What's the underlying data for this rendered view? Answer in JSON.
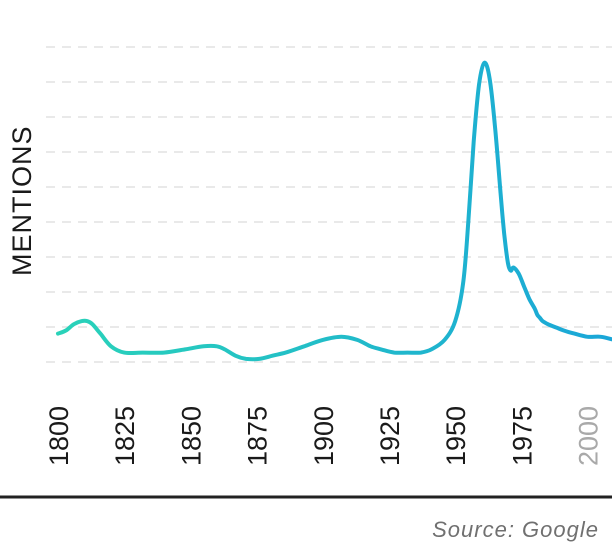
{
  "chart_data": {
    "type": "line",
    "title": "",
    "xlabel": "",
    "ylabel": "MENTIONS",
    "xlim": [
      1800,
      2010
    ],
    "ylim": [
      0,
      1.0
    ],
    "x_ticks": [
      "1800",
      "1825",
      "1850",
      "1875",
      "1900",
      "1925",
      "1950",
      "1975",
      "2000"
    ],
    "muted_ticks": [
      "2000"
    ],
    "grid": true,
    "gradient_colors": [
      "#2ad4b8",
      "#1aa6d8"
    ],
    "series": [
      {
        "name": "",
        "x": [
          1800,
          1803,
          1806,
          1809,
          1811,
          1813,
          1816,
          1820,
          1825,
          1832,
          1840,
          1848,
          1855,
          1860,
          1863,
          1867,
          1871,
          1876,
          1881,
          1886,
          1893,
          1900,
          1907,
          1913,
          1918,
          1922,
          1927,
          1932,
          1937,
          1941,
          1946,
          1950,
          1953,
          1955,
          1957,
          1959,
          1961,
          1963,
          1965,
          1967,
          1968,
          1969,
          1970,
          1971,
          1972,
          1974,
          1976,
          1978,
          1980,
          1981,
          1982,
          1983,
          1985,
          1988,
          1991,
          1995,
          2000,
          2005,
          2010
        ],
        "values": [
          0.09,
          0.1,
          0.12,
          0.13,
          0.13,
          0.12,
          0.09,
          0.05,
          0.03,
          0.03,
          0.03,
          0.04,
          0.05,
          0.05,
          0.04,
          0.02,
          0.01,
          0.01,
          0.02,
          0.03,
          0.05,
          0.07,
          0.08,
          0.07,
          0.05,
          0.04,
          0.03,
          0.03,
          0.03,
          0.04,
          0.07,
          0.13,
          0.25,
          0.45,
          0.7,
          0.88,
          0.95,
          0.9,
          0.75,
          0.55,
          0.45,
          0.37,
          0.31,
          0.29,
          0.3,
          0.28,
          0.24,
          0.2,
          0.17,
          0.15,
          0.14,
          0.13,
          0.12,
          0.11,
          0.1,
          0.09,
          0.08,
          0.08,
          0.07
        ]
      }
    ]
  },
  "source": {
    "text": "Source: Google"
  }
}
